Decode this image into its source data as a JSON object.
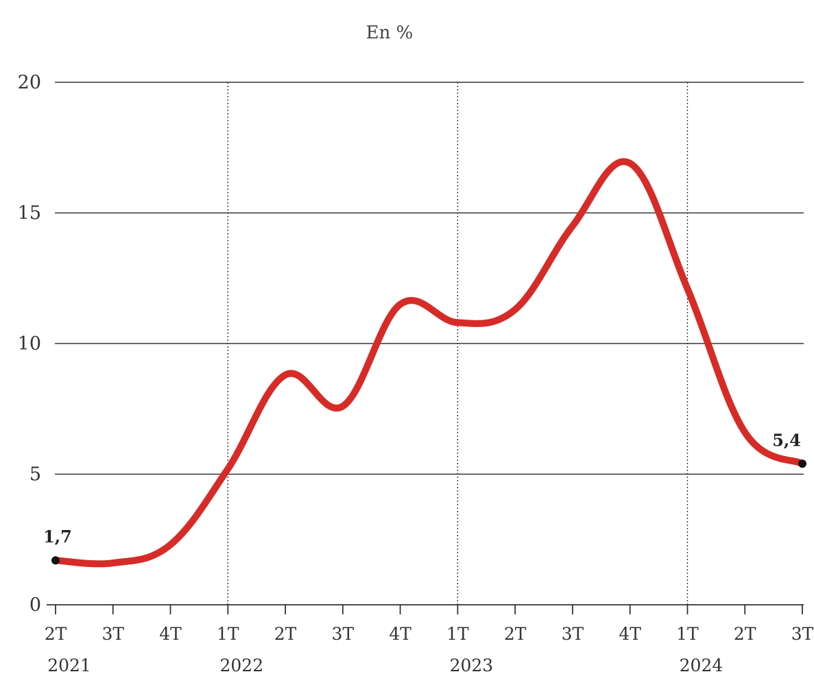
{
  "chart_data": {
    "type": "line",
    "unit_label": "En %",
    "ylim": [
      0,
      20
    ],
    "yticks": [
      "0",
      "5",
      "10",
      "15",
      "20"
    ],
    "categories": [
      "2T",
      "3T",
      "4T",
      "1T",
      "2T",
      "3T",
      "4T",
      "1T",
      "2T",
      "3T",
      "4T",
      "1T",
      "2T",
      "3T"
    ],
    "year_labels": [
      {
        "index": 0,
        "label": "2021"
      },
      {
        "index": 3,
        "label": "2022"
      },
      {
        "index": 7,
        "label": "2023"
      },
      {
        "index": 11,
        "label": "2024"
      }
    ],
    "year_separators": [
      3,
      7,
      11
    ],
    "series": [
      {
        "color": "#d62b27",
        "values": [
          1.7,
          1.6,
          2.3,
          5.2,
          8.8,
          7.6,
          11.5,
          10.8,
          11.3,
          14.5,
          16.9,
          12.1,
          6.6,
          5.4
        ]
      }
    ],
    "annotations": [
      {
        "index": 0,
        "text": "1,7"
      },
      {
        "index": 13,
        "text": "5,4"
      }
    ],
    "grid": "horizontal",
    "colors": {
      "line": "#d62b27",
      "grid": "#333333",
      "separator": "#333333",
      "endpoint": "#111111"
    }
  }
}
